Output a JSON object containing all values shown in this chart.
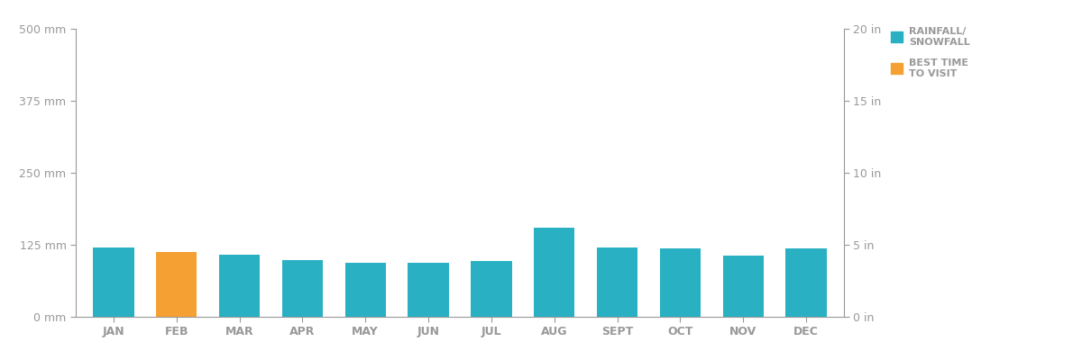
{
  "months": [
    "JAN",
    "FEB",
    "MAR",
    "APR",
    "MAY",
    "JUN",
    "JUL",
    "AUG",
    "SEPT",
    "OCT",
    "NOV",
    "DEC"
  ],
  "values_mm": [
    120,
    113,
    108,
    98,
    93,
    93,
    97,
    155,
    120,
    118,
    107,
    118
  ],
  "bar_colors": [
    "#29b0c3",
    "#f5a033",
    "#29b0c3",
    "#29b0c3",
    "#29b0c3",
    "#29b0c3",
    "#29b0c3",
    "#29b0c3",
    "#29b0c3",
    "#29b0c3",
    "#29b0c3",
    "#29b0c3"
  ],
  "ylim_mm": [
    0,
    500
  ],
  "ylim_in": [
    0,
    20
  ],
  "yticks_mm": [
    0,
    125,
    250,
    375,
    500
  ],
  "yticks_in": [
    0,
    5,
    10,
    15,
    20
  ],
  "ytick_labels_mm": [
    "0 mm",
    "125 mm",
    "250 mm",
    "375 mm",
    "500 mm"
  ],
  "ytick_labels_in": [
    "0 in",
    "5 in",
    "10 in",
    "15 in",
    "20 in"
  ],
  "legend_rainfall_label": "RAINFALL/\nSNOWFALL",
  "legend_besttime_label": "BEST TIME\nTO VISIT",
  "rainfall_color": "#29b0c3",
  "besttime_color": "#f5a033",
  "axis_color": "#999999",
  "text_color": "#999999",
  "background_color": "#ffffff",
  "tick_fontsize": 9,
  "legend_fontsize": 8,
  "bar_width": 0.65
}
